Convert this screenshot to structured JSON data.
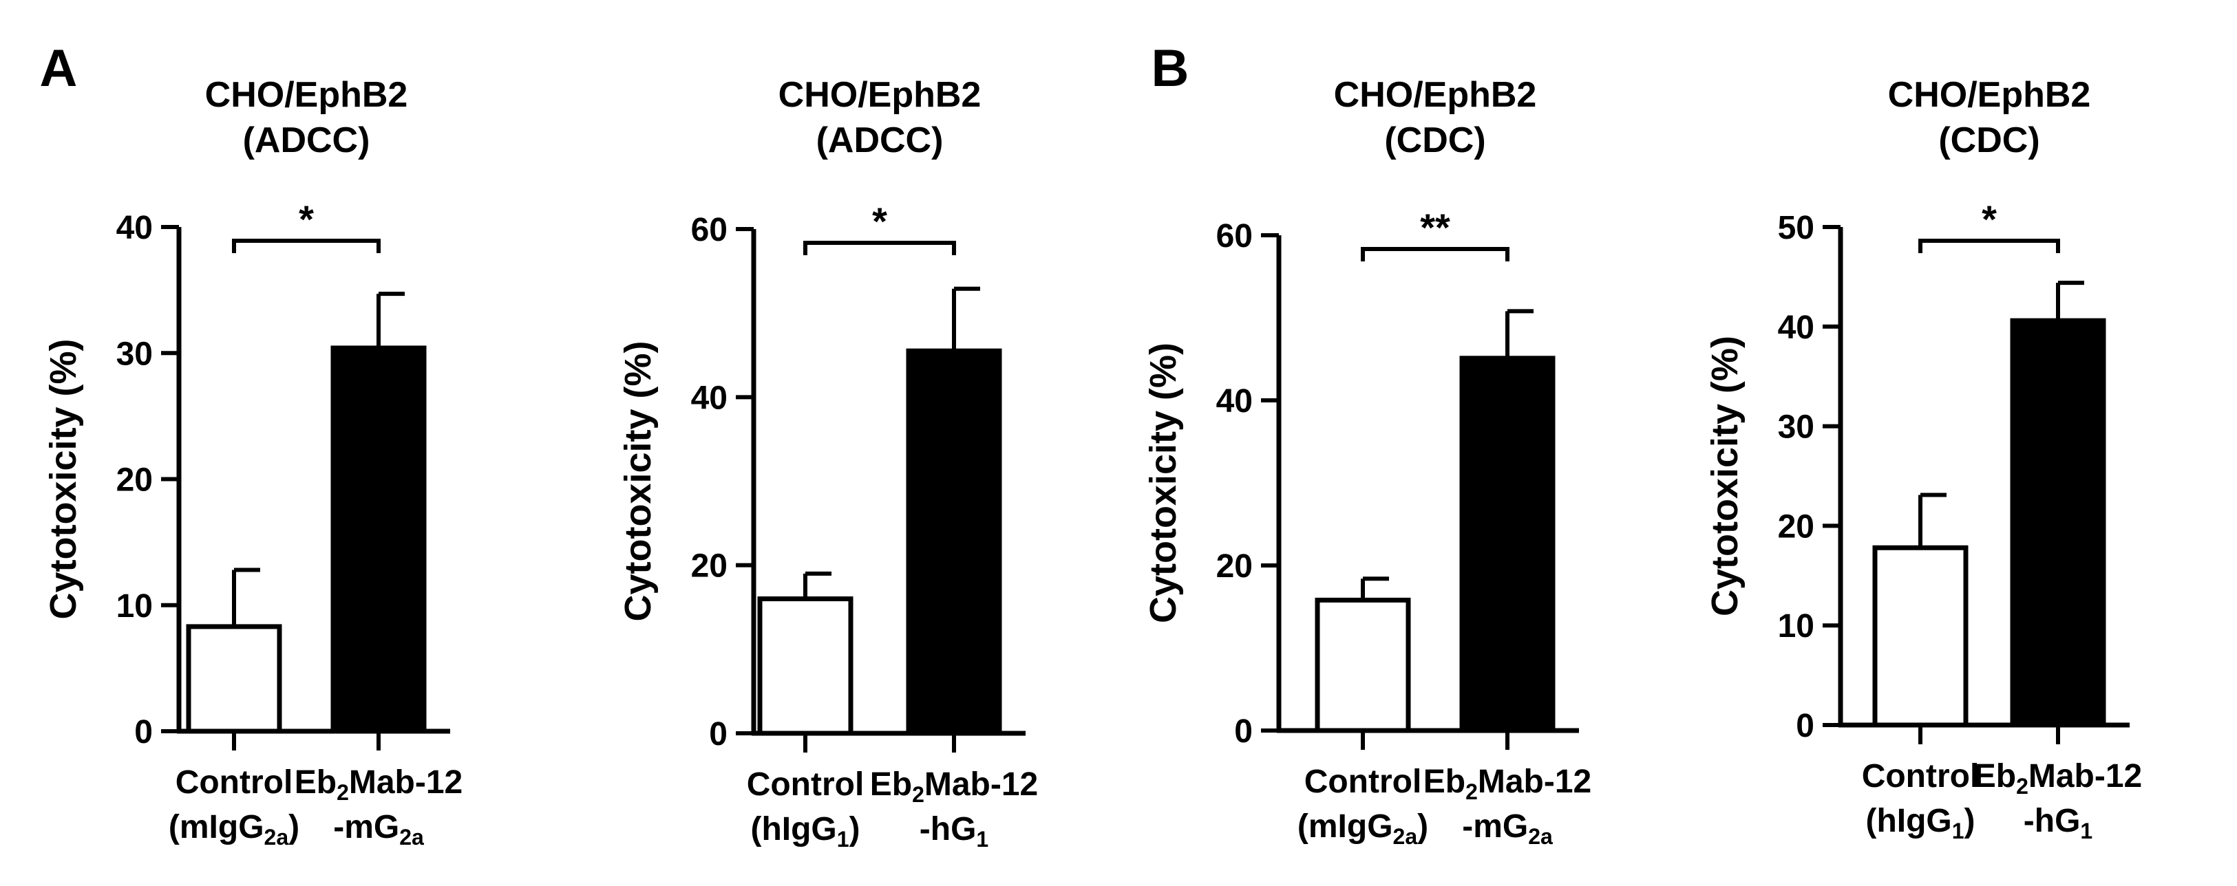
{
  "panel_labels": [
    "A",
    "B"
  ],
  "chart_data": [
    {
      "type": "bar",
      "panel": "A",
      "title_lines": [
        "CHO/EphB2",
        "(ADCC)"
      ],
      "ylabel": "Cytotoxicity (%)",
      "ylim": [
        0,
        40
      ],
      "yticks": [
        "0",
        "10",
        "20",
        "30",
        "40"
      ],
      "categories": [
        {
          "line1": "Control",
          "line2_pre": "(mIgG",
          "line2_sub": "2a",
          "line2_post": ")"
        },
        {
          "line1_pre": "Eb",
          "line1_sub": "2",
          "line1_post": "Mab-12",
          "line2_pre": "-mG",
          "line2_sub": "2a",
          "line2_post": ""
        }
      ],
      "values": [
        8.3,
        30.4
      ],
      "errors": [
        4.5,
        4.3
      ],
      "fills": [
        "#ffffff",
        "#000000"
      ],
      "significance": "*"
    },
    {
      "type": "bar",
      "panel": "",
      "title_lines": [
        "CHO/EphB2",
        "(ADCC)"
      ],
      "ylabel": "Cytotoxicity (%)",
      "ylim": [
        0,
        60
      ],
      "yticks": [
        "0",
        "20",
        "40",
        "60"
      ],
      "categories": [
        {
          "line1": "Control",
          "line2_pre": "(hIgG",
          "line2_sub": "1",
          "line2_post": ")"
        },
        {
          "line1_pre": "Eb",
          "line1_sub": "2",
          "line1_post": "Mab-12",
          "line2_pre": "-hG",
          "line2_sub": "1",
          "line2_post": ""
        }
      ],
      "values": [
        16.0,
        45.5
      ],
      "errors": [
        3.0,
        7.4
      ],
      "fills": [
        "#ffffff",
        "#000000"
      ],
      "significance": "*"
    },
    {
      "type": "bar",
      "panel": "B",
      "title_lines": [
        "CHO/EphB2",
        "(CDC)"
      ],
      "ylabel": "Cytotoxicity (%)",
      "ylim": [
        0,
        60
      ],
      "yticks": [
        "0",
        "20",
        "40",
        "60"
      ],
      "categories": [
        {
          "line1": "Control",
          "line2_pre": "(mIgG",
          "line2_sub": "2a",
          "line2_post": ")"
        },
        {
          "line1_pre": "Eb",
          "line1_sub": "2",
          "line1_post": "Mab-12",
          "line2_pre": "-mG",
          "line2_sub": "2a",
          "line2_post": ""
        }
      ],
      "values": [
        15.8,
        45.1
      ],
      "errors": [
        2.6,
        5.7
      ],
      "fills": [
        "#ffffff",
        "#000000"
      ],
      "significance": "**"
    },
    {
      "type": "bar",
      "panel": "",
      "title_lines": [
        "CHO/EphB2",
        "(CDC)"
      ],
      "ylabel": "Cytotoxicity (%)",
      "ylim": [
        0,
        50
      ],
      "yticks": [
        "0",
        "10",
        "20",
        "30",
        "40",
        "50"
      ],
      "categories": [
        {
          "line1": "Control",
          "line2_pre": "(hIgG",
          "line2_sub": "1",
          "line2_post": ")"
        },
        {
          "line1_pre": "Eb",
          "line1_sub": "2",
          "line1_post": "Mab-12",
          "line2_pre": "-hG",
          "line2_sub": "1",
          "line2_post": ""
        }
      ],
      "values": [
        17.8,
        40.6
      ],
      "errors": [
        5.3,
        3.8
      ],
      "fills": [
        "#ffffff",
        "#000000"
      ],
      "significance": "*"
    }
  ]
}
